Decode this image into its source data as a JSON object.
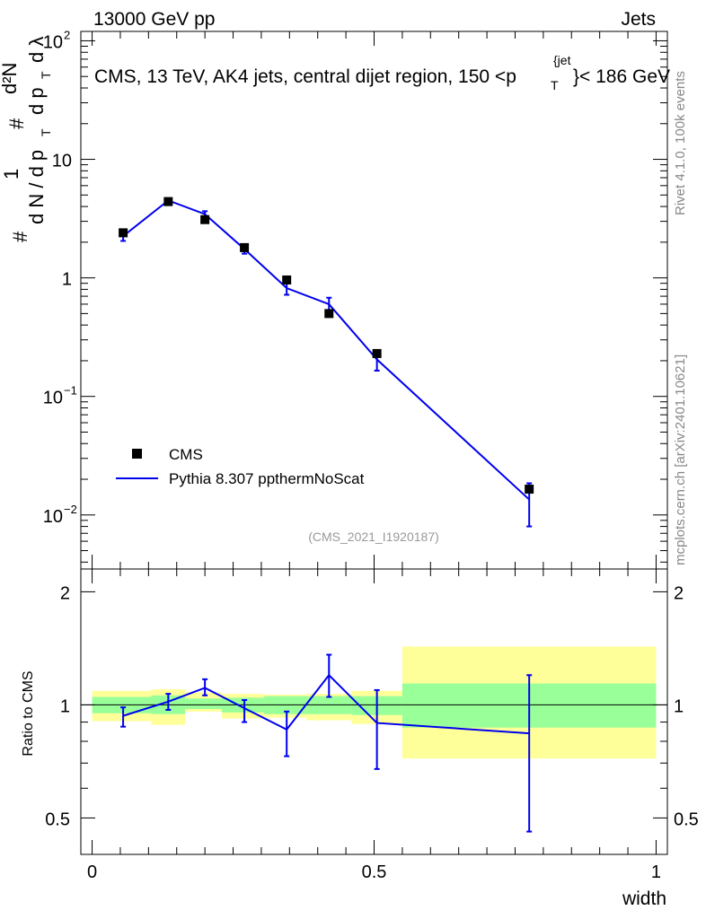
{
  "header": {
    "left_label": "13000 GeV pp",
    "right_label": "Jets",
    "title": "CMS, 13 TeV, AK4 jets, central dijet region, 150 <p",
    "title_sup": "{jet",
    "title_sub": "T",
    "title_tail": "}< 186 GeV"
  },
  "side_labels": {
    "rivet": "Rivet 4.1.0,  100k events",
    "mcplots": "mcplots.cern.ch [arXiv:2401.10621]"
  },
  "watermark": "(CMS_2021_I1920187)",
  "y_axis_main_label": {
    "numerator": "1",
    "denominator_dN": "d N / d p",
    "denominator_sub": "T",
    "hash": "#",
    "right_num": "d²N",
    "right_den": "d p",
    "right_den_sub": "T",
    "right_tail": "d λ"
  },
  "legend": {
    "data_label": "CMS",
    "mc_label": "Pythia 8.307 ppthermNoScat"
  },
  "main_ticks": [
    {
      "value": 0.01,
      "base": "10",
      "exp": "−2"
    },
    {
      "value": 0.1,
      "base": "10",
      "exp": "−1"
    },
    {
      "value": 1,
      "base": "1",
      "exp": ""
    },
    {
      "value": 10,
      "base": "10",
      "exp": ""
    },
    {
      "value": 100,
      "base": "10",
      "exp": "2"
    }
  ],
  "ratio_ticks": [
    "0.5",
    "1",
    "2"
  ],
  "x_ticks": [
    "0",
    "0.5",
    "1"
  ],
  "x_label": "width",
  "ratio_y_label": "Ratio to CMS",
  "colors": {
    "data": "#000000",
    "mc": "#0000ee",
    "band_inner": "#99ff99",
    "band_outer": "#ffff99"
  },
  "chart_data": {
    "type": "line",
    "xlabel": "width",
    "xlim": [
      -0.02,
      1.02
    ],
    "main_ylim": [
      0.0035,
      120
    ],
    "ratio_ylim": [
      0.4,
      2.3
    ],
    "scale_main": "log",
    "scale_ratio": "log",
    "data": {
      "name": "CMS",
      "x": [
        0.055,
        0.135,
        0.2,
        0.27,
        0.345,
        0.42,
        0.505,
        0.775
      ],
      "y": [
        2.4,
        4.4,
        3.1,
        1.8,
        0.96,
        0.5,
        0.23,
        0.0165
      ],
      "xerr": [
        0,
        0,
        0,
        0,
        0,
        0,
        0,
        0
      ],
      "yerr": [
        0.1,
        0.15,
        0.1,
        0.06,
        0.04,
        0.03,
        0.015,
        0.002
      ]
    },
    "mc": {
      "name": "Pythia 8.307 ppthermNoScat",
      "x": [
        0.055,
        0.135,
        0.2,
        0.27,
        0.345,
        0.42,
        0.505,
        0.775
      ],
      "y": [
        2.25,
        4.5,
        3.45,
        1.75,
        0.82,
        0.6,
        0.205,
        0.0135
      ],
      "yerr_lo": [
        0.2,
        0.2,
        0.2,
        0.15,
        0.1,
        0.08,
        0.04,
        0.0055
      ],
      "yerr_hi": [
        0.2,
        0.2,
        0.2,
        0.15,
        0.1,
        0.08,
        0.03,
        0.005
      ]
    },
    "ratio": {
      "x": [
        0.055,
        0.135,
        0.2,
        0.27,
        0.345,
        0.42,
        0.505,
        0.775
      ],
      "y": [
        0.935,
        1.02,
        1.11,
        0.98,
        0.86,
        1.2,
        0.895,
        0.84
      ],
      "err_lo": [
        0.06,
        0.05,
        0.05,
        0.08,
        0.13,
        0.15,
        0.22,
        0.38
      ],
      "err_hi": [
        0.05,
        0.05,
        0.06,
        0.05,
        0.1,
        0.16,
        0.2,
        0.36
      ]
    },
    "bands": [
      {
        "x0": 0.0,
        "x1": 0.105,
        "inner": [
          0.95,
          1.05
        ],
        "outer": [
          0.905,
          1.09
        ]
      },
      {
        "x0": 0.105,
        "x1": 0.165,
        "inner": [
          0.945,
          1.06
        ],
        "outer": [
          0.885,
          1.1
        ]
      },
      {
        "x0": 0.165,
        "x1": 0.23,
        "inner": [
          0.975,
          1.04
        ],
        "outer": [
          0.96,
          1.08
        ]
      },
      {
        "x0": 0.23,
        "x1": 0.305,
        "inner": [
          0.955,
          1.045
        ],
        "outer": [
          0.92,
          1.07
        ]
      },
      {
        "x0": 0.305,
        "x1": 0.38,
        "inner": [
          0.945,
          1.055
        ],
        "outer": [
          0.925,
          1.065
        ]
      },
      {
        "x0": 0.38,
        "x1": 0.46,
        "inner": [
          0.945,
          1.055
        ],
        "outer": [
          0.91,
          1.07
        ]
      },
      {
        "x0": 0.46,
        "x1": 0.55,
        "inner": [
          0.94,
          1.055
        ],
        "outer": [
          0.89,
          1.09
        ]
      },
      {
        "x0": 0.55,
        "x1": 1.0,
        "inner": [
          0.87,
          1.14
        ],
        "outer": [
          0.72,
          1.43
        ]
      }
    ]
  }
}
